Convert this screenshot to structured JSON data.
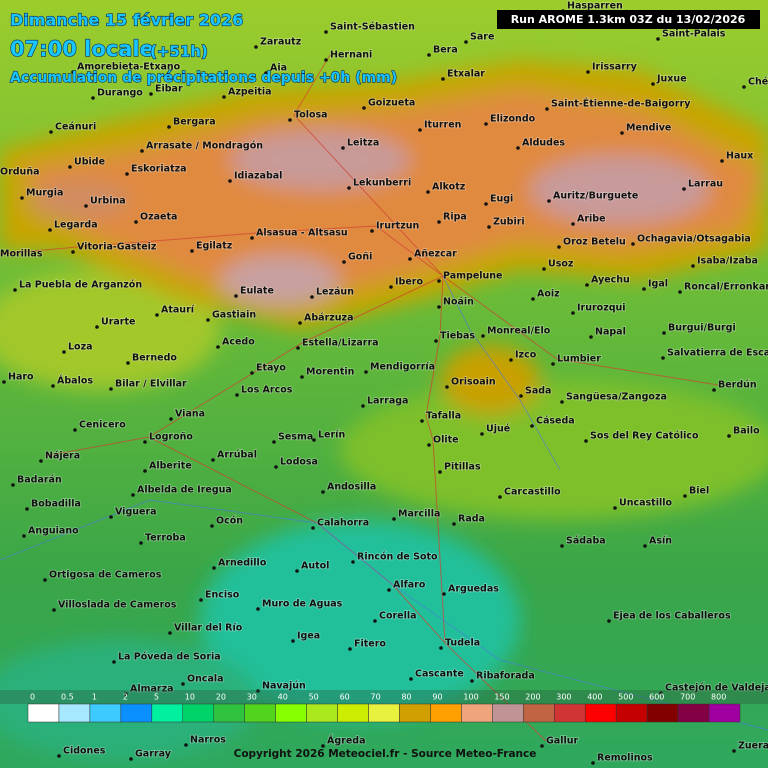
{
  "header": {
    "date": "Dimanche 15 février 2026",
    "time": "07:00 locale",
    "offset": "(+51h)",
    "subtitle": "Accumulation de précipitations depuis +0h (mm)",
    "run": "Run AROME 1.3km 03Z du 13/02/2026"
  },
  "legend": {
    "values": [
      0,
      0.5,
      1,
      2,
      5,
      10,
      20,
      30,
      40,
      50,
      60,
      70,
      80,
      90,
      100,
      150,
      200,
      300,
      400,
      500,
      600,
      700,
      800
    ],
    "colors": [
      "#ffffff",
      "#a6e8ff",
      "#3ccaff",
      "#0a90ff",
      "#00f0a0",
      "#00d468",
      "#2ec23e",
      "#52d41e",
      "#86ff00",
      "#ace81e",
      "#ccec00",
      "#e8f23e",
      "#d0a000",
      "#ffa000",
      "#f0a47c",
      "#c09494",
      "#c06444",
      "#d03434",
      "#ff0000",
      "#c40000",
      "#820000",
      "#840044",
      "#a000a0"
    ]
  },
  "towns": [
    "Hasparren",
    "Saint-Sébastien",
    "Sare",
    "Saint-Palais",
    "Zarautz",
    "Hernani",
    "Bera",
    "Irissarry",
    "Juxue",
    "Chéraute",
    "Amorebieta-Etxano",
    "Aia",
    "Etxalar",
    "Durango",
    "Eibar",
    "Azpeitia",
    "Goizueta",
    "Saint-Étienne-de-Baigorry",
    "Ceánuri",
    "Bergara",
    "Tolosa",
    "Iturren",
    "Elizondo",
    "Mendive",
    "Arrasate / Mondragón",
    "Leitza",
    "Aldudes",
    "Haux",
    "Ubide",
    "Eskoriatza",
    "Orduña",
    "Idiazabal",
    "Lekunberri",
    "Alkotz",
    "Larrau",
    "Murgia",
    "Auritz/Burguete",
    "Urbina",
    "Eugi",
    "Ripa",
    "Zubiri",
    "Ozaeta",
    "Aribe",
    "Legarda",
    "Irurtzun",
    "Alsasua - Altsasu",
    "Vitoria-Gasteiz",
    "Egilatz",
    "Oroz Betelu",
    "Ochagavia/Otsagabia",
    "Añezcar",
    "Goñi",
    "Usoz",
    "Isaba/Izaba",
    "Morillas",
    "Pampelune",
    "Ibero",
    "Ayechu",
    "Igal",
    "La Puebla de Arganzón",
    "Roncal/Erronkari",
    "Eulate",
    "Lezáun",
    "Aoiz",
    "Noáin",
    "Ataurí",
    "Gastiain",
    "Irurozqui",
    "Urarte",
    "Abárzuza",
    "Burgui/Burgi",
    "Monreal/Elo",
    "Napal",
    "Tiebas",
    "Acedo",
    "Estella/Lizarra",
    "Loza",
    "Izco",
    "Lumbier",
    "Salvatierra de Esca",
    "Bernedo",
    "Etayo",
    "Morentin",
    "Mendigorría",
    "Haro",
    "Ábalos",
    "Bilar / Elvillar",
    "Orisoain",
    "Sada",
    "Berdún",
    "Los Arcos",
    "Larraga",
    "Sangüesa/Zangoza",
    "Viana",
    "Tafalla",
    "Cáseda",
    "Cenicero",
    "Ujué",
    "Logroño",
    "Sesma",
    "Lerín",
    "Olite",
    "Sos del Rey Católico",
    "Bailo",
    "Nájera",
    "Arrúbal",
    "Lodosa",
    "Pitillas",
    "Alberite",
    "Badarán",
    "Andosilla",
    "Carcastillo",
    "Albelda de Iregua",
    "Biel",
    "Bobadilla",
    "Uncastillo",
    "Viguera",
    "Marcilla",
    "Rada",
    "Ocón",
    "Calahorra",
    "Anguiano",
    "Terroba",
    "Sádaba",
    "Asín",
    "Rincón de Soto",
    "Arnedillo",
    "Autol",
    "Ortigosa de Cameros",
    "Alfaro",
    "Arguedas",
    "Enciso",
    "Villoslada de Cameros",
    "Muro de Aguas",
    "Corella",
    "Ejea de los Caballeros",
    "Villar del Río",
    "Igea",
    "Fitero",
    "Tudela",
    "La Póveda de Soria",
    "Cascante",
    "Ribaforada",
    "Oncala",
    "Almarza",
    "Navajún",
    "Castejón de Valdejasa",
    "Narros",
    "Ágreda",
    "Gallur",
    "Cidones",
    "Garray",
    "Remolinos",
    "Zuera"
  ],
  "copyright": "Copyright 2026 Meteociel.fr - Source Meteo-France"
}
